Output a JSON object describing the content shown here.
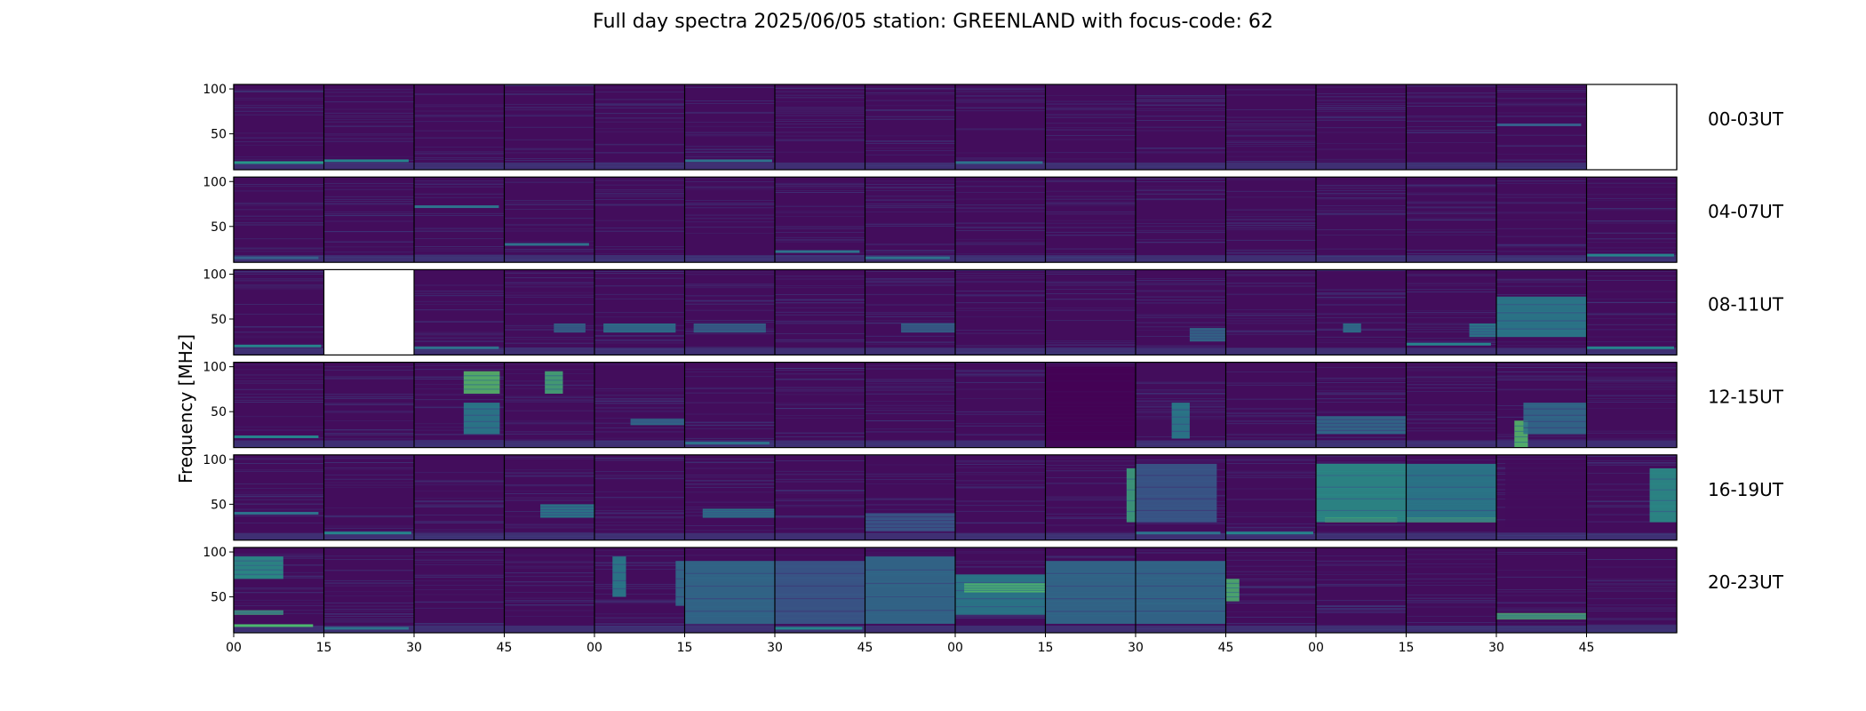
{
  "chart_data": {
    "type": "heatmap",
    "title": "Full day spectra 2025/06/05 station: GREENLAND with focus-code: 62",
    "ylabel": "Frequency [MHz]",
    "xlabel": "",
    "ylim": [
      10,
      105
    ],
    "yticks": [
      50,
      100
    ],
    "xticks": [
      "00",
      "15",
      "30",
      "45",
      "00",
      "15",
      "30",
      "45",
      "00",
      "15",
      "30",
      "45",
      "00",
      "15",
      "30",
      "45"
    ],
    "colormap": "viridis",
    "colors": {
      "background": "#440154",
      "mid": "#3b528b",
      "bright": "#21918c",
      "peak": "#5ec962"
    },
    "rows": [
      {
        "label": "00-03UT",
        "missing": [
          15
        ],
        "lines": [
          [
            0,
            18,
            0.7,
            0.5
          ],
          [
            1,
            20,
            0.6,
            0.3
          ],
          [
            5,
            20,
            0.5,
            0.4
          ],
          [
            8,
            18,
            0.5,
            0.4
          ],
          [
            14,
            60,
            0.4,
            0.3
          ]
        ],
        "patches": []
      },
      {
        "label": "04-07UT",
        "missing": [],
        "lines": [
          [
            0,
            15,
            0.4,
            0.3
          ],
          [
            2,
            72,
            0.5,
            0.3
          ],
          [
            3,
            30,
            0.5,
            0.3
          ],
          [
            6,
            22,
            0.5,
            0.3
          ],
          [
            7,
            15,
            0.5,
            0.3
          ],
          [
            15,
            18,
            0.6,
            0.4
          ]
        ],
        "patches": []
      },
      {
        "label": "08-11UT",
        "missing": [
          1
        ],
        "lines": [
          [
            0,
            20,
            0.6,
            0.4
          ],
          [
            2,
            18,
            0.5,
            0.3
          ],
          [
            13,
            22,
            0.6,
            0.3
          ],
          [
            15,
            18,
            0.6,
            0.4
          ]
        ],
        "patches": [
          [
            3,
            0.55,
            0.9,
            35,
            45,
            0.5
          ],
          [
            4,
            0.1,
            0.9,
            35,
            45,
            0.6
          ],
          [
            5,
            0.1,
            0.9,
            35,
            45,
            0.5
          ],
          [
            7,
            0.4,
            1.0,
            35,
            45,
            0.5
          ],
          [
            10,
            0.6,
            1.0,
            25,
            40,
            0.5
          ],
          [
            12,
            0.3,
            0.5,
            35,
            45,
            0.6
          ],
          [
            13,
            0.7,
            1.0,
            30,
            45,
            0.6
          ],
          [
            14,
            0.0,
            1.0,
            30,
            75,
            0.6
          ]
        ]
      },
      {
        "label": "12-15UT",
        "missing": [],
        "lines": [
          [
            0,
            22,
            0.6,
            0.3
          ],
          [
            5,
            15,
            0.5,
            0.3
          ]
        ],
        "patches": [
          [
            2,
            0.55,
            0.95,
            70,
            95,
            0.95
          ],
          [
            2,
            0.55,
            0.95,
            25,
            60,
            0.6
          ],
          [
            3,
            0.45,
            0.65,
            70,
            95,
            0.85
          ],
          [
            4,
            0.4,
            1.0,
            35,
            42,
            0.6
          ],
          [
            9,
            0.0,
            1.0,
            10,
            100,
            0.0
          ],
          [
            10,
            0.4,
            0.6,
            20,
            60,
            0.6
          ],
          [
            12,
            0.0,
            1.0,
            25,
            45,
            0.5
          ],
          [
            14,
            0.2,
            0.35,
            10,
            40,
            0.95
          ],
          [
            14,
            0.3,
            1.0,
            25,
            60,
            0.5
          ]
        ]
      },
      {
        "label": "16-19UT",
        "missing": [],
        "lines": [
          [
            0,
            40,
            0.5,
            0.3
          ],
          [
            1,
            18,
            0.6,
            0.4
          ],
          [
            10,
            18,
            0.5,
            0.3
          ],
          [
            11,
            18,
            0.6,
            0.4
          ]
        ],
        "patches": [
          [
            3,
            0.4,
            1.0,
            35,
            50,
            0.6
          ],
          [
            5,
            0.2,
            1.0,
            35,
            45,
            0.6
          ],
          [
            7,
            0.0,
            1.0,
            20,
            40,
            0.4
          ],
          [
            9,
            0.9,
            1.0,
            30,
            90,
            0.8
          ],
          [
            10,
            0.0,
            0.9,
            30,
            95,
            0.4
          ],
          [
            12,
            0.0,
            1.0,
            30,
            95,
            0.7
          ],
          [
            12,
            0.1,
            0.9,
            30,
            35,
            0.95
          ],
          [
            13,
            0.0,
            1.0,
            30,
            95,
            0.6
          ],
          [
            13,
            0.0,
            1.0,
            30,
            35,
            0.9
          ],
          [
            14,
            0.1,
            1.0,
            25,
            100,
            0.05
          ],
          [
            15,
            0.7,
            1.0,
            30,
            90,
            0.7
          ]
        ]
      },
      {
        "label": "20-23UT",
        "missing": [],
        "lines": [
          [
            0,
            18,
            0.9,
            0.9
          ],
          [
            1,
            15,
            0.5,
            0.3
          ],
          [
            6,
            15,
            0.6,
            0.4
          ]
        ],
        "patches": [
          [
            0,
            0.0,
            0.55,
            70,
            95,
            0.7
          ],
          [
            0,
            0.0,
            0.55,
            30,
            35,
            0.9
          ],
          [
            4,
            0.2,
            0.35,
            50,
            95,
            0.6
          ],
          [
            4,
            0.9,
            1.0,
            40,
            90,
            0.5
          ],
          [
            5,
            0.0,
            1.0,
            20,
            90,
            0.5
          ],
          [
            6,
            0.0,
            1.0,
            20,
            90,
            0.4
          ],
          [
            7,
            0.0,
            1.0,
            20,
            95,
            0.5
          ],
          [
            8,
            0.0,
            1.0,
            30,
            75,
            0.6
          ],
          [
            8,
            0.1,
            1.0,
            55,
            65,
            0.95
          ],
          [
            9,
            0.0,
            1.0,
            20,
            90,
            0.5
          ],
          [
            10,
            0.0,
            1.0,
            20,
            90,
            0.5
          ],
          [
            11,
            0.0,
            0.15,
            45,
            70,
            0.9
          ],
          [
            14,
            0.0,
            1.0,
            25,
            32,
            0.95
          ]
        ]
      }
    ]
  }
}
